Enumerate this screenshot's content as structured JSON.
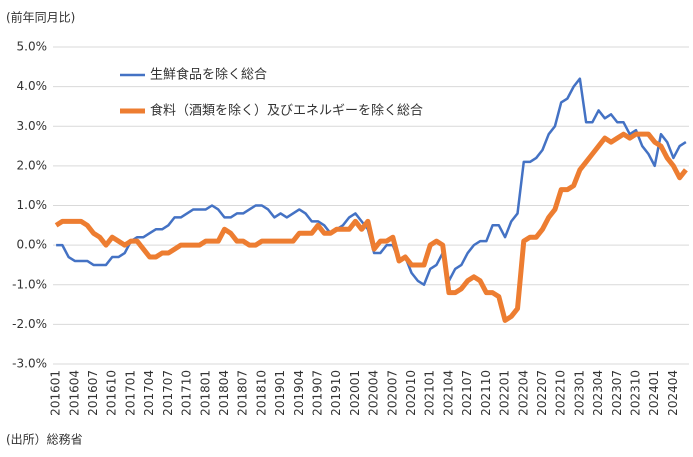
{
  "chart_data": {
    "type": "line",
    "ylabel": "(前年同月比)",
    "source": "(出所）総務省",
    "categories": [
      "201601",
      null,
      null,
      "201604",
      null,
      null,
      "201607",
      null,
      null,
      "201610",
      null,
      null,
      "201701",
      null,
      null,
      "201704",
      null,
      null,
      "201707",
      null,
      null,
      "201710",
      null,
      null,
      "201801",
      null,
      null,
      "201804",
      null,
      null,
      "201807",
      null,
      null,
      "201810",
      null,
      null,
      "201901",
      null,
      null,
      "201904",
      null,
      null,
      "201907",
      null,
      null,
      "201910",
      null,
      null,
      "202001",
      null,
      null,
      "202004",
      null,
      null,
      "202007",
      null,
      null,
      "202010",
      null,
      null,
      "202101",
      null,
      null,
      "202104",
      null,
      null,
      "202107",
      null,
      null,
      "202110",
      null,
      null,
      "202201",
      null,
      null,
      "202204",
      null,
      null,
      "202207",
      null,
      null,
      "202210",
      null,
      null,
      "202301",
      null,
      null,
      "202304",
      null,
      null,
      "202307",
      null,
      null,
      "202310",
      null,
      null,
      "202401",
      null,
      null,
      "202404",
      null,
      null
    ],
    "series": [
      {
        "name": "生鮮食品を除く総合",
        "color": "#4472c4",
        "width": 2.5,
        "values": [
          0,
          0,
          -0.3,
          -0.4,
          -0.4,
          -0.4,
          -0.5,
          -0.5,
          -0.5,
          -0.3,
          -0.3,
          -0.2,
          0.1,
          0.2,
          0.2,
          0.3,
          0.4,
          0.4,
          0.5,
          0.7,
          0.7,
          0.8,
          0.9,
          0.9,
          0.9,
          1.0,
          0.9,
          0.7,
          0.7,
          0.8,
          0.8,
          0.9,
          1.0,
          1.0,
          0.9,
          0.7,
          0.8,
          0.7,
          0.8,
          0.9,
          0.8,
          0.6,
          0.6,
          0.5,
          0.3,
          0.4,
          0.5,
          0.7,
          0.8,
          0.6,
          0.4,
          -0.2,
          -0.2,
          0.0,
          0.0,
          -0.4,
          -0.3,
          -0.7,
          -0.9,
          -1.0,
          -0.6,
          -0.5,
          -0.2,
          -0.9,
          -0.6,
          -0.5,
          -0.2,
          0.0,
          0.1,
          0.1,
          0.5,
          0.5,
          0.2,
          0.6,
          0.8,
          2.1,
          2.1,
          2.2,
          2.4,
          2.8,
          3.0,
          3.6,
          3.7,
          4.0,
          4.2,
          3.1,
          3.1,
          3.4,
          3.2,
          3.3,
          3.1,
          3.1,
          2.8,
          2.9,
          2.5,
          2.3,
          2.0,
          2.8,
          2.6,
          2.2,
          2.5,
          2.6
        ]
      },
      {
        "name": "食料（酒類を除く）及びエネルギーを除く総合",
        "color": "#ed7d31",
        "width": 5,
        "values": [
          0.5,
          0.6,
          0.6,
          0.6,
          0.6,
          0.5,
          0.3,
          0.2,
          0.0,
          0.2,
          0.1,
          0.0,
          0.1,
          0.1,
          -0.1,
          -0.3,
          -0.3,
          -0.2,
          -0.2,
          -0.1,
          0.0,
          0.0,
          0.0,
          0.0,
          0.1,
          0.1,
          0.1,
          0.4,
          0.3,
          0.1,
          0.1,
          0.0,
          0.0,
          0.1,
          0.1,
          0.1,
          0.1,
          0.1,
          0.1,
          0.3,
          0.3,
          0.3,
          0.5,
          0.3,
          0.3,
          0.4,
          0.4,
          0.4,
          0.6,
          0.4,
          0.6,
          -0.1,
          0.1,
          0.1,
          0.2,
          -0.4,
          -0.3,
          -0.5,
          -0.5,
          -0.5,
          0.0,
          0.1,
          0.0,
          -1.2,
          -1.2,
          -1.1,
          -0.9,
          -0.8,
          -0.9,
          -1.2,
          -1.2,
          -1.3,
          -1.9,
          -1.8,
          -1.6,
          0.1,
          0.2,
          0.2,
          0.4,
          0.7,
          0.9,
          1.4,
          1.4,
          1.5,
          1.9,
          2.1,
          2.3,
          2.5,
          2.7,
          2.6,
          2.7,
          2.8,
          2.7,
          2.8,
          2.8,
          2.8,
          2.6,
          2.5,
          2.2,
          2.0,
          1.7,
          1.9
        ]
      }
    ],
    "ylim": [
      -3,
      5
    ],
    "yticks": [
      {
        "value": -3,
        "label": "-3.0%"
      },
      {
        "value": -2,
        "label": "-2.0%"
      },
      {
        "value": -1,
        "label": "-1.0%"
      },
      {
        "value": 0,
        "label": "0.0%"
      },
      {
        "value": 1,
        "label": "1.0%"
      },
      {
        "value": 2,
        "label": "2.0%"
      },
      {
        "value": 3,
        "label": "3.0%"
      },
      {
        "value": 4,
        "label": "4.0%"
      },
      {
        "value": 5,
        "label": "5.0%"
      }
    ],
    "grid": true,
    "legend": "upper-left"
  }
}
